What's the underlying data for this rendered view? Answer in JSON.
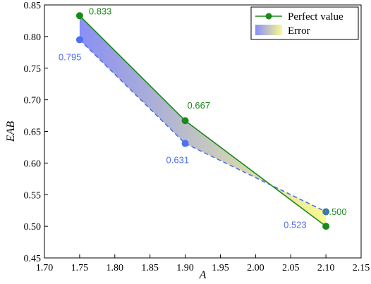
{
  "chart_data": {
    "type": "line",
    "xlabel": "A",
    "ylabel": "EAB",
    "xlim": [
      1.7,
      2.15
    ],
    "ylim": [
      0.45,
      0.85
    ],
    "xticks": [
      "1.70",
      "1.75",
      "1.80",
      "1.85",
      "1.90",
      "1.95",
      "2.00",
      "2.05",
      "2.10",
      "2.15"
    ],
    "yticks": [
      "0.45",
      "0.50",
      "0.55",
      "0.60",
      "0.65",
      "0.70",
      "0.75",
      "0.80",
      "0.85"
    ],
    "x": [
      1.75,
      1.9,
      2.1
    ],
    "series": [
      {
        "name": "Perfect value",
        "values": [
          0.833,
          0.667,
          0.5
        ],
        "labels": [
          "0.833",
          "0.667",
          "0.500"
        ],
        "color": "#1a8a1a",
        "style": "solid"
      },
      {
        "name": "",
        "values": [
          0.795,
          0.631,
          0.523
        ],
        "labels": [
          "0.795",
          "0.631",
          "0.523"
        ],
        "color": "#4f6ef0",
        "style": "dashed"
      }
    ],
    "fill": {
      "name": "Error",
      "gradient_from": "#8a8ff5",
      "gradient_to": "#fafa90"
    },
    "legend_position": "top-right",
    "grid": false
  }
}
